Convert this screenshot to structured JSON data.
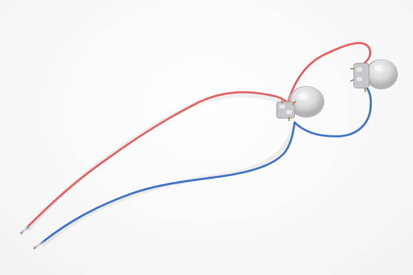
{
  "image": {
    "subject": "two-sensor-assembly-with-red-and-blue-wires",
    "background_color": "#ffffff",
    "colors": {
      "red_wire": "#e46161",
      "blue_wire": "#3f72c6",
      "metal": "#c9c9cc",
      "copper": "#c1803f"
    }
  }
}
